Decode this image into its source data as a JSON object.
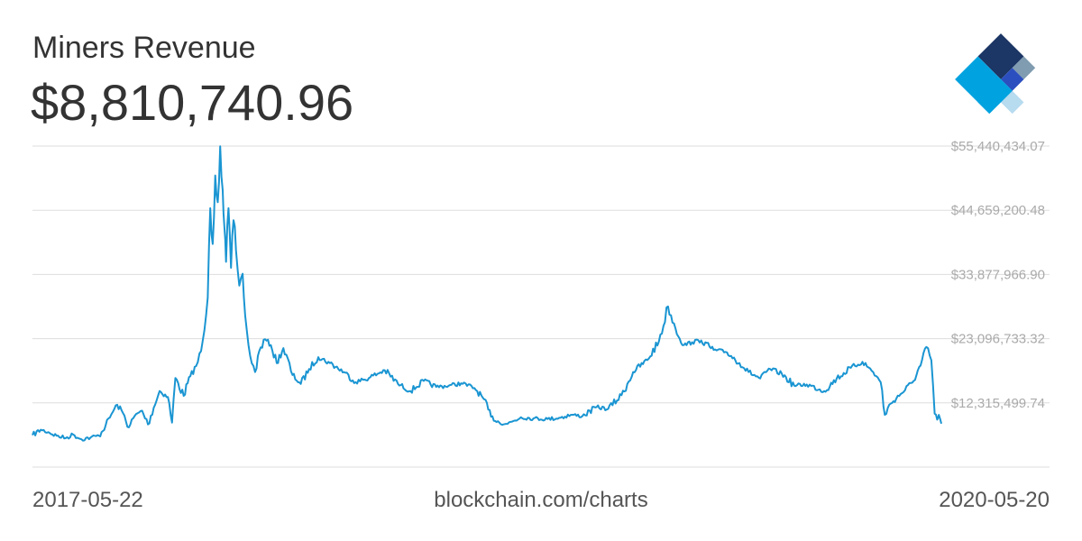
{
  "header": {
    "title": "Miners Revenue",
    "current_value": "$8,810,740.96"
  },
  "footer": {
    "start_date": "2017-05-22",
    "source": "blockchain.com/charts",
    "end_date": "2020-05-20"
  },
  "logo": {
    "icon": "blockchain-logo-icon",
    "colors": [
      "#1c3665",
      "#7f9cb0",
      "#2c4fbf",
      "#00a3e0",
      "#b7dbef"
    ]
  },
  "colors": {
    "line": "#1a95d2",
    "grid": "#dddddd",
    "tick": "#aaaaaa"
  },
  "chart_data": {
    "type": "line",
    "title": "Miners Revenue",
    "x_range": [
      "2017-05-22",
      "2020-05-20"
    ],
    "yticks": [
      {
        "value": 12315499.74,
        "label": "$12,315,499.74"
      },
      {
        "value": 23096733.32,
        "label": "$23,096,733.32"
      },
      {
        "value": 33877966.9,
        "label": "$33,877,966.90"
      },
      {
        "value": 44659200.48,
        "label": "$44,659,200.48"
      },
      {
        "value": 55440434.07,
        "label": "$55,440,434.07"
      }
    ],
    "ylim": [
      1534266.16,
      55440434.07
    ],
    "grid": true,
    "series": [
      {
        "points": [
          [
            "2017-05-22",
            6900000
          ],
          [
            "2017-06-01",
            7800000
          ],
          [
            "2017-06-10",
            7400000
          ],
          [
            "2017-06-20",
            6800000
          ],
          [
            "2017-07-01",
            6400000
          ],
          [
            "2017-07-10",
            7000000
          ],
          [
            "2017-07-20",
            6200000
          ],
          [
            "2017-07-31",
            6500000
          ],
          [
            "2017-08-10",
            6800000
          ],
          [
            "2017-08-18",
            8500000
          ],
          [
            "2017-08-25",
            10400000
          ],
          [
            "2017-09-01",
            12000000
          ],
          [
            "2017-09-08",
            10600000
          ],
          [
            "2017-09-15",
            8200000
          ],
          [
            "2017-09-22",
            10100000
          ],
          [
            "2017-10-01",
            11000000
          ],
          [
            "2017-10-08",
            8700000
          ],
          [
            "2017-10-15",
            11500000
          ],
          [
            "2017-10-22",
            14300000
          ],
          [
            "2017-11-01",
            13300000
          ],
          [
            "2017-11-06",
            9000000
          ],
          [
            "2017-11-10",
            16500000
          ],
          [
            "2017-11-20",
            13500000
          ],
          [
            "2017-11-28",
            16800000
          ],
          [
            "2017-12-05",
            18500000
          ],
          [
            "2017-12-11",
            21000000
          ],
          [
            "2017-12-15",
            24500000
          ],
          [
            "2017-12-19",
            30000000
          ],
          [
            "2017-12-22",
            45000000
          ],
          [
            "2017-12-25",
            39000000
          ],
          [
            "2017-12-28",
            50500000
          ],
          [
            "2017-12-31",
            46000000
          ],
          [
            "2018-01-03",
            55400000
          ],
          [
            "2018-01-06",
            48000000
          ],
          [
            "2018-01-08",
            42000000
          ],
          [
            "2018-01-10",
            36000000
          ],
          [
            "2018-01-13",
            45000000
          ],
          [
            "2018-01-16",
            35000000
          ],
          [
            "2018-01-19",
            43000000
          ],
          [
            "2018-01-22",
            38000000
          ],
          [
            "2018-01-26",
            32000000
          ],
          [
            "2018-01-30",
            34000000
          ],
          [
            "2018-02-02",
            27000000
          ],
          [
            "2018-02-06",
            22000000
          ],
          [
            "2018-02-10",
            19000000
          ],
          [
            "2018-02-14",
            17500000
          ],
          [
            "2018-02-19",
            21000000
          ],
          [
            "2018-02-26",
            23000000
          ],
          [
            "2018-03-05",
            22000000
          ],
          [
            "2018-03-12",
            19000000
          ],
          [
            "2018-03-20",
            21500000
          ],
          [
            "2018-03-31",
            17000000
          ],
          [
            "2018-04-10",
            15500000
          ],
          [
            "2018-04-20",
            18000000
          ],
          [
            "2018-05-01",
            20000000
          ],
          [
            "2018-05-15",
            19000000
          ],
          [
            "2018-06-01",
            17500000
          ],
          [
            "2018-06-15",
            15800000
          ],
          [
            "2018-07-01",
            16500000
          ],
          [
            "2018-07-20",
            17800000
          ],
          [
            "2018-08-05",
            15500000
          ],
          [
            "2018-08-20",
            14300000
          ],
          [
            "2018-09-05",
            16000000
          ],
          [
            "2018-09-20",
            15000000
          ],
          [
            "2018-10-05",
            15200000
          ],
          [
            "2018-10-20",
            15600000
          ],
          [
            "2018-11-05",
            14800000
          ],
          [
            "2018-11-15",
            13200000
          ],
          [
            "2018-11-25",
            10000000
          ],
          [
            "2018-12-05",
            9000000
          ],
          [
            "2018-12-15",
            8800000
          ],
          [
            "2018-12-31",
            9900000
          ],
          [
            "2019-01-15",
            9700000
          ],
          [
            "2019-02-01",
            9600000
          ],
          [
            "2019-02-15",
            9800000
          ],
          [
            "2019-03-01",
            10300000
          ],
          [
            "2019-03-15",
            10100000
          ],
          [
            "2019-04-01",
            11600000
          ],
          [
            "2019-04-15",
            11300000
          ],
          [
            "2019-05-01",
            13600000
          ],
          [
            "2019-05-15",
            17500000
          ],
          [
            "2019-06-01",
            19500000
          ],
          [
            "2019-06-15",
            22600000
          ],
          [
            "2019-06-26",
            28500000
          ],
          [
            "2019-07-05",
            24800000
          ],
          [
            "2019-07-15",
            22000000
          ],
          [
            "2019-07-25",
            22500000
          ],
          [
            "2019-08-05",
            22800000
          ],
          [
            "2019-08-20",
            21200000
          ],
          [
            "2019-09-05",
            20800000
          ],
          [
            "2019-09-20",
            19000000
          ],
          [
            "2019-10-01",
            17500000
          ],
          [
            "2019-10-15",
            16400000
          ],
          [
            "2019-10-27",
            18000000
          ],
          [
            "2019-11-10",
            17200000
          ],
          [
            "2019-11-25",
            15200000
          ],
          [
            "2019-12-10",
            15400000
          ],
          [
            "2019-12-31",
            14300000
          ],
          [
            "2020-01-15",
            16400000
          ],
          [
            "2020-02-01",
            18200000
          ],
          [
            "2020-02-15",
            19200000
          ],
          [
            "2020-02-28",
            17500000
          ],
          [
            "2020-03-08",
            15800000
          ],
          [
            "2020-03-13",
            10300000
          ],
          [
            "2020-03-20",
            12200000
          ],
          [
            "2020-04-01",
            13800000
          ],
          [
            "2020-04-15",
            15700000
          ],
          [
            "2020-04-25",
            18600000
          ],
          [
            "2020-05-02",
            21700000
          ],
          [
            "2020-05-08",
            19500000
          ],
          [
            "2020-05-12",
            10500000
          ],
          [
            "2020-05-15",
            9500000
          ],
          [
            "2020-05-17",
            10300000
          ],
          [
            "2020-05-20",
            8810740.96
          ]
        ]
      }
    ]
  }
}
